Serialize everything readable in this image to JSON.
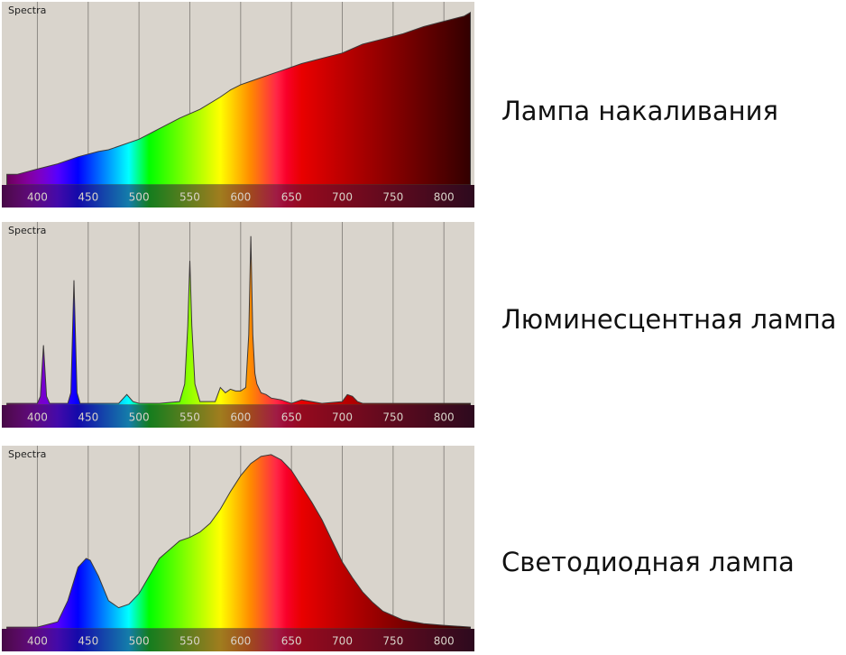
{
  "colors": {
    "background": "#d9d4cc",
    "gridline": "#8e8a84",
    "axis_bar": "#2a1b3d",
    "tick_label": "#d8d2c8",
    "outline": "#3c3838"
  },
  "chart_data": [
    {
      "type": "area",
      "panel_label": "Spectra",
      "caption": "Лампа накаливания",
      "xlim": [
        365,
        830
      ],
      "ylim": [
        0,
        1
      ],
      "x_ticks": [
        400,
        450,
        500,
        550,
        600,
        650,
        700,
        750,
        800
      ],
      "grid": true,
      "x": [
        370,
        380,
        400,
        420,
        440,
        460,
        470,
        480,
        500,
        520,
        540,
        560,
        580,
        590,
        600,
        610,
        620,
        640,
        660,
        680,
        700,
        720,
        740,
        760,
        780,
        800,
        820,
        826
      ],
      "y": [
        0.06,
        0.06,
        0.09,
        0.12,
        0.16,
        0.19,
        0.2,
        0.22,
        0.26,
        0.32,
        0.38,
        0.43,
        0.5,
        0.54,
        0.57,
        0.59,
        0.61,
        0.65,
        0.69,
        0.72,
        0.75,
        0.8,
        0.83,
        0.86,
        0.9,
        0.93,
        0.96,
        0.98
      ]
    },
    {
      "type": "area",
      "panel_label": "Spectra",
      "caption": "Люминесцентная лампа",
      "xlim": [
        365,
        830
      ],
      "ylim": [
        0,
        1
      ],
      "x_ticks": [
        400,
        450,
        500,
        550,
        600,
        650,
        700,
        750,
        800
      ],
      "grid": true,
      "x": [
        370,
        400,
        403,
        406,
        409,
        412,
        430,
        433,
        436,
        439,
        442,
        480,
        488,
        494,
        500,
        520,
        540,
        545,
        548,
        550,
        552,
        555,
        560,
        575,
        580,
        585,
        590,
        595,
        600,
        605,
        608,
        610,
        612,
        614,
        616,
        620,
        625,
        630,
        640,
        650,
        660,
        680,
        700,
        705,
        710,
        715,
        720,
        740,
        760,
        780,
        800,
        826
      ],
      "y": [
        0.01,
        0.01,
        0.05,
        0.34,
        0.05,
        0.01,
        0.01,
        0.07,
        0.71,
        0.07,
        0.01,
        0.01,
        0.06,
        0.02,
        0.01,
        0.01,
        0.02,
        0.12,
        0.45,
        0.82,
        0.45,
        0.12,
        0.02,
        0.02,
        0.1,
        0.07,
        0.09,
        0.08,
        0.08,
        0.1,
        0.4,
        0.96,
        0.4,
        0.18,
        0.12,
        0.07,
        0.06,
        0.04,
        0.03,
        0.01,
        0.03,
        0.01,
        0.02,
        0.06,
        0.05,
        0.02,
        0.01,
        0.01,
        0.01,
        0.01,
        0.01,
        0.01
      ]
    },
    {
      "type": "area",
      "panel_label": "Spectra",
      "caption": "Светодиодная лампа",
      "xlim": [
        365,
        830
      ],
      "ylim": [
        0,
        1
      ],
      "x_ticks": [
        400,
        450,
        500,
        550,
        600,
        650,
        700,
        750,
        800
      ],
      "grid": true,
      "x": [
        370,
        400,
        420,
        430,
        440,
        448,
        452,
        460,
        470,
        480,
        490,
        500,
        510,
        520,
        530,
        540,
        550,
        560,
        570,
        580,
        590,
        600,
        610,
        620,
        630,
        640,
        650,
        660,
        670,
        680,
        690,
        700,
        710,
        720,
        730,
        740,
        760,
        780,
        800,
        826
      ],
      "y": [
        0.01,
        0.01,
        0.04,
        0.16,
        0.35,
        0.4,
        0.39,
        0.3,
        0.16,
        0.12,
        0.14,
        0.2,
        0.3,
        0.4,
        0.45,
        0.5,
        0.52,
        0.55,
        0.6,
        0.68,
        0.78,
        0.87,
        0.94,
        0.98,
        0.99,
        0.96,
        0.9,
        0.81,
        0.72,
        0.62,
        0.5,
        0.38,
        0.29,
        0.21,
        0.15,
        0.1,
        0.05,
        0.03,
        0.02,
        0.01
      ]
    }
  ]
}
